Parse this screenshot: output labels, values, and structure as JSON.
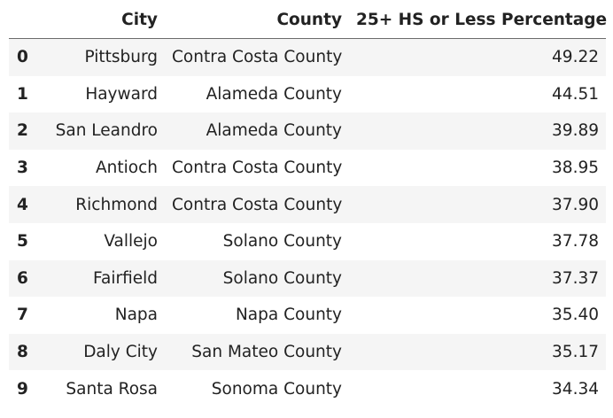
{
  "table": {
    "columns": [
      "City",
      "County",
      "25+ HS or Less Percentage"
    ],
    "rows": [
      {
        "index": "0",
        "city": "Pittsburg",
        "county": "Contra Costa County",
        "pct": "49.22"
      },
      {
        "index": "1",
        "city": "Hayward",
        "county": "Alameda County",
        "pct": "44.51"
      },
      {
        "index": "2",
        "city": "San Leandro",
        "county": "Alameda County",
        "pct": "39.89"
      },
      {
        "index": "3",
        "city": "Antioch",
        "county": "Contra Costa County",
        "pct": "38.95"
      },
      {
        "index": "4",
        "city": "Richmond",
        "county": "Contra Costa County",
        "pct": "37.90"
      },
      {
        "index": "5",
        "city": "Vallejo",
        "county": "Solano County",
        "pct": "37.78"
      },
      {
        "index": "6",
        "city": "Fairfield",
        "county": "Solano County",
        "pct": "37.37"
      },
      {
        "index": "7",
        "city": "Napa",
        "county": "Napa County",
        "pct": "35.40"
      },
      {
        "index": "8",
        "city": "Daly City",
        "county": "San Mateo County",
        "pct": "35.17"
      },
      {
        "index": "9",
        "city": "Santa Rosa",
        "county": "Sonoma County",
        "pct": "34.34"
      }
    ]
  }
}
